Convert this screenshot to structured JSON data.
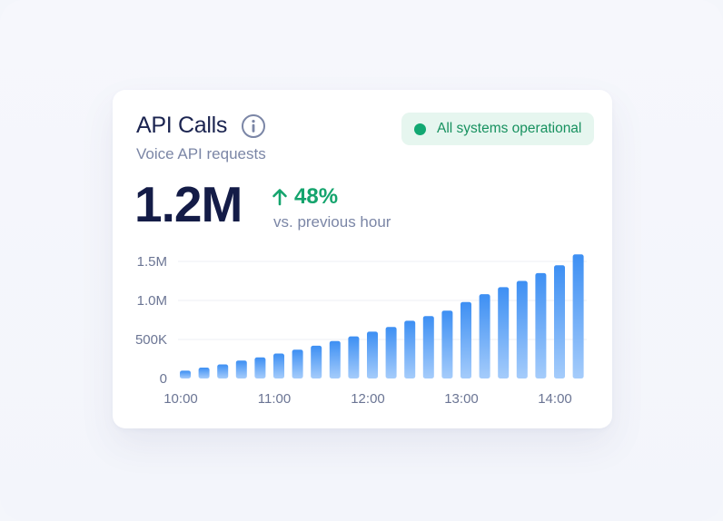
{
  "card": {
    "title": "API Calls",
    "subtitle": "Voice API requests",
    "info_icon": "info-circle-icon",
    "status": {
      "label": "All systems operational",
      "color": "#12a872",
      "background": "#e6f6ef"
    },
    "metric": {
      "value": "1.2M",
      "change": "48%",
      "change_direction": "up",
      "change_icon": "arrow-up-icon",
      "change_label": "vs. previous hour",
      "positive_color": "#14a46d"
    }
  },
  "chart_data": {
    "type": "bar",
    "ylim": [
      0,
      1500000
    ],
    "y_ticks": [
      {
        "value": 0,
        "label": "0"
      },
      {
        "value": 500000,
        "label": "500K"
      },
      {
        "value": 1000000,
        "label": "1.0M"
      },
      {
        "value": 1500000,
        "label": "1.5M"
      }
    ],
    "x_tick_labels": [
      "10:00",
      "11:00",
      "12:00",
      "13:00",
      "14:00"
    ],
    "values": [
      100000,
      140000,
      180000,
      230000,
      270000,
      320000,
      370000,
      420000,
      480000,
      540000,
      600000,
      660000,
      740000,
      800000,
      870000,
      980000,
      1080000,
      1170000,
      1250000,
      1350000,
      1450000,
      1590000
    ],
    "bar_color_top": "#3d8ff3",
    "bar_color_bottom": "#a5ccfb",
    "grid": true
  }
}
